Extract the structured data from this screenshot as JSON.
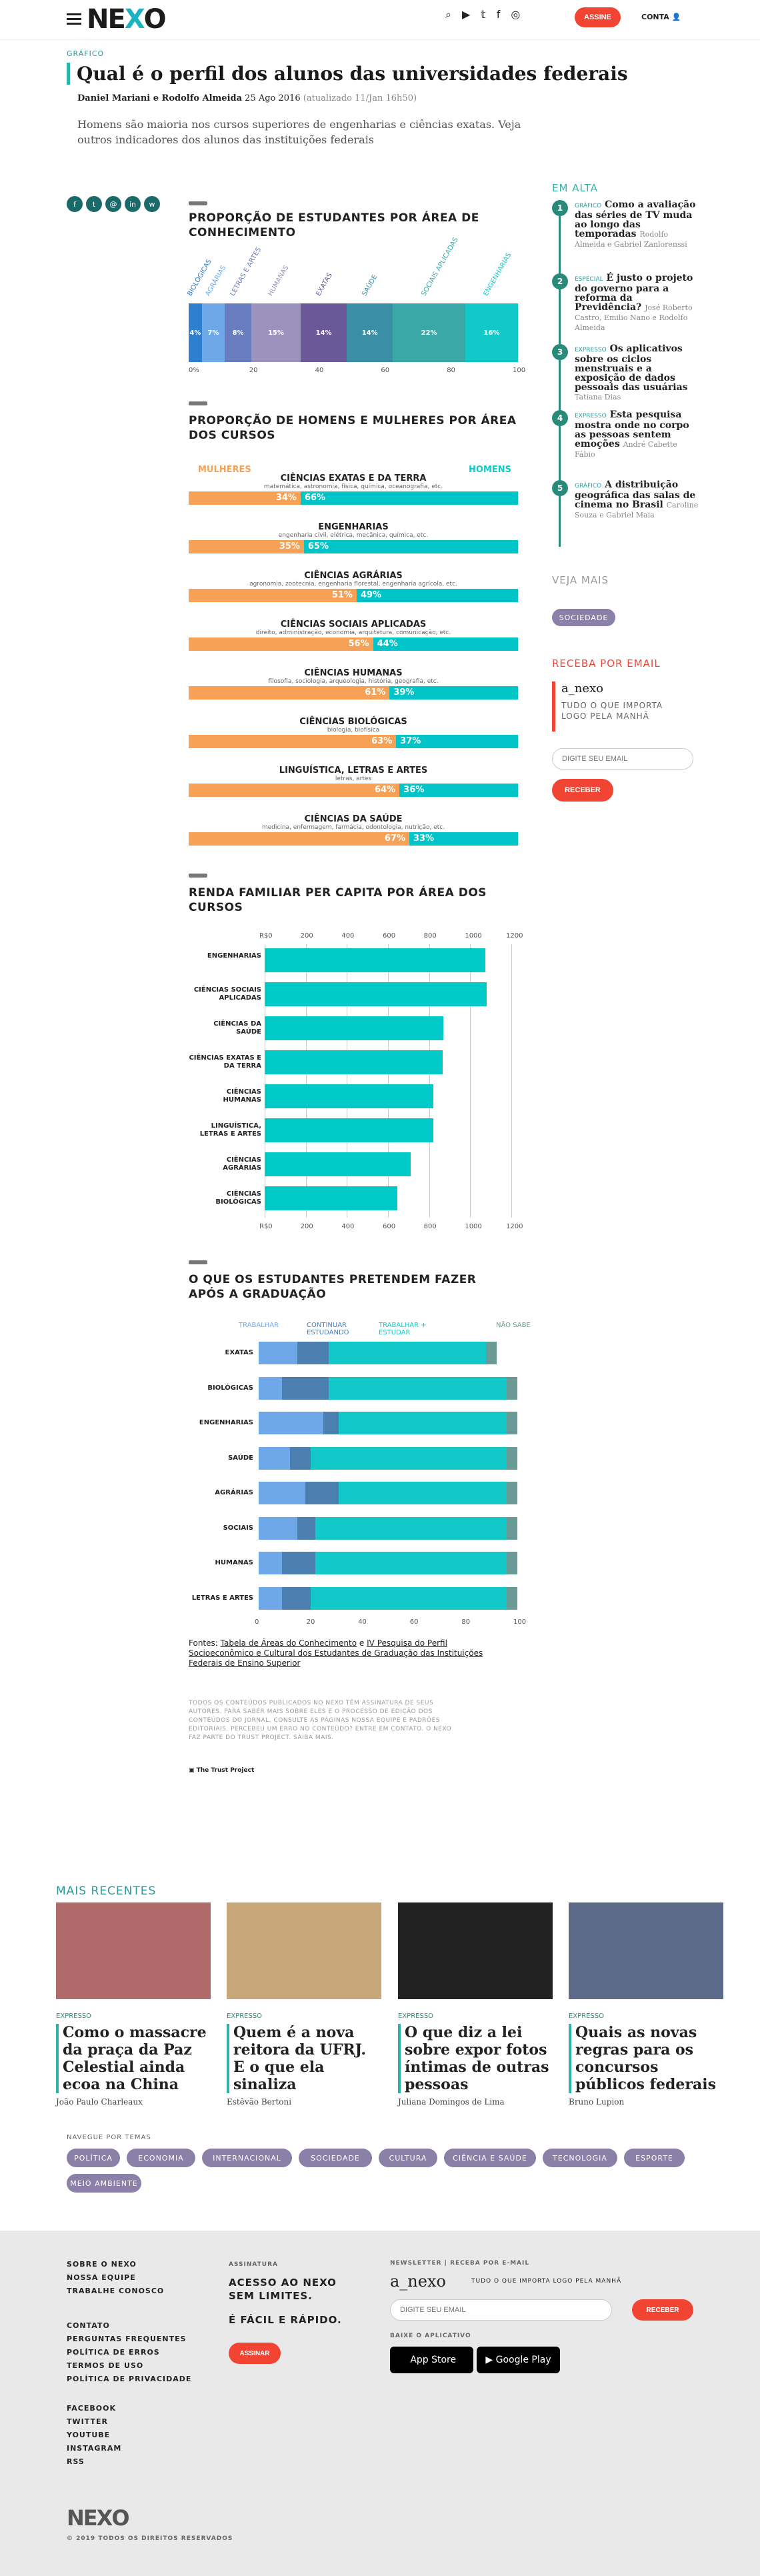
{
  "header": {
    "logo_a": "NE",
    "logo_b": "X",
    "logo_c": "O",
    "assine": "ASSINE",
    "conta": "CONTA"
  },
  "article": {
    "kicker": "GRÁFICO",
    "title": "Qual é o perfil dos alunos das universidades federais",
    "authors": "Daniel Mariani e Rodolfo Almeida",
    "date": "25 Ago 2016",
    "updated": "(atualizado 11/Jan 16h50)",
    "lead": "Homens são maioria nos cursos superiores de engenharias e ciências exatas. Veja outros indicadores dos alunos das instituições federais"
  },
  "chart1": {
    "title": "PROPORÇÃO DE ESTUDANTES POR ÁREA DE CONHECIMENTO",
    "segments": [
      {
        "label": "BIOLÓGICAS",
        "value": "4%",
        "color": "#2f7fcf"
      },
      {
        "label": "AGRÁRIAS",
        "value": "7%",
        "color": "#6fa8e8"
      },
      {
        "label": "LETRAS E ARTES",
        "value": "8%",
        "color": "#6a7cc0"
      },
      {
        "label": "HUMANAS",
        "value": "15%",
        "color": "#9b92bd"
      },
      {
        "label": "EXATAS",
        "value": "14%",
        "color": "#6b5899"
      },
      {
        "label": "SAÚDE",
        "value": "14%",
        "color": "#3a8fa6"
      },
      {
        "label": "SOCIAIS APLICADAS",
        "value": "22%",
        "color": "#3aa8a6"
      },
      {
        "label": "ENGENHARIAS",
        "value": "16%",
        "color": "#12c8c8"
      }
    ],
    "ticks": [
      "0%",
      "20",
      "40",
      "60",
      "80",
      "100"
    ]
  },
  "chart2": {
    "title": "PROPORÇÃO DE HOMENS E MULHERES POR ÁREA DOS CURSOS",
    "women": "MULHERES",
    "men": "HOMENS",
    "rows": [
      {
        "label": "CIÊNCIAS EXATAS E DA TERRA",
        "sub": "matemática, astronomia, física, química, oceanografia, etc.",
        "w": "34%",
        "m": "66%"
      },
      {
        "label": "ENGENHARIAS",
        "sub": "engenharia civil, elétrica, mecânica, química, etc.",
        "w": "35%",
        "m": "65%"
      },
      {
        "label": "CIÊNCIAS AGRÁRIAS",
        "sub": "agronomia, zootecnia, engenharia florestal, engenharia agrícola, etc.",
        "w": "51%",
        "m": "49%"
      },
      {
        "label": "CIÊNCIAS SOCIAIS APLICADAS",
        "sub": "direito, administração, economia, arquitetura, comunicação, etc.",
        "w": "56%",
        "m": "44%"
      },
      {
        "label": "CIÊNCIAS HUMANAS",
        "sub": "filosofia, sociologia, arqueologia, história, geografia, etc.",
        "w": "61%",
        "m": "39%"
      },
      {
        "label": "CIÊNCIAS BIOLÓGICAS",
        "sub": "biologia, biofísica",
        "w": "63%",
        "m": "37%"
      },
      {
        "label": "LINGUÍSTICA, LETRAS E ARTES",
        "sub": "letras, artes",
        "w": "64%",
        "m": "36%"
      },
      {
        "label": "CIÊNCIAS DA SAÚDE",
        "sub": "medicina, enfermagem, farmácia, odontologia, nutrição, etc.",
        "w": "67%",
        "m": "33%"
      }
    ]
  },
  "chart_data": [
    {
      "type": "bar",
      "title": "RENDA FAMILIAR PER CAPITA POR ÁREA DOS CURSOS",
      "xlim": [
        0,
        1200
      ],
      "ticks": [
        "R$0",
        "200",
        "400",
        "600",
        "800",
        "1000",
        "1200"
      ],
      "categories": [
        "ENGENHARIAS",
        "CIÊNCIAS SOCIAIS APLICADAS",
        "CIÊNCIAS DA SAÚDE",
        "CIÊNCIAS EXATAS E DA TERRA",
        "CIÊNCIAS HUMANAS",
        "LINGUÍSTICA, LETRAS E ARTES",
        "CIÊNCIAS AGRÁRIAS",
        "CIÊNCIAS BIOLÓGICAS"
      ],
      "values": [
        1075,
        1080,
        870,
        865,
        820,
        820,
        710,
        645
      ]
    },
    {
      "type": "bar",
      "title": "O QUE OS ESTUDANTES PRETENDEM FAZER APÓS A GRADUAÇÃO",
      "ticks": [
        "0",
        "20",
        "40",
        "60",
        "80",
        "100"
      ],
      "legend": [
        "TRABALHAR",
        "CONTINUAR ESTUDANDO",
        "TRABALHAR + ESTUDAR",
        "NÃO SABE"
      ],
      "colors": [
        "#6fa8e8",
        "#4a7fb0",
        "#12c8c8",
        "#6a9a96"
      ],
      "categories": [
        "EXATAS",
        "BIOLÓGICAS",
        "ENGENHARIAS",
        "SAÚDE",
        "AGRÁRIAS",
        "SOCIAIS",
        "HUMANAS",
        "LETRAS E ARTES"
      ],
      "series": [
        [
          15,
          12,
          61,
          4
        ],
        [
          9,
          18,
          69,
          4
        ],
        [
          25,
          6,
          65,
          4
        ],
        [
          12,
          8,
          76,
          4
        ],
        [
          18,
          13,
          65,
          4
        ],
        [
          15,
          7,
          74,
          4
        ],
        [
          9,
          13,
          74,
          4
        ],
        [
          9,
          11,
          76,
          4
        ]
      ]
    }
  ],
  "sources": {
    "prefix": "Fontes:",
    "s1": "Tabela de Áreas do Conhecimento",
    "mid": "e",
    "s2": "IV Pesquisa do Perfil Socioeconômico e Cultural dos Estudantes de Graduação das Instituições Federais de Ensino Superior"
  },
  "legal": "TODOS OS CONTEÚDOS PUBLICADOS NO NEXO TÊM ASSINATURA DE SEUS AUTORES. PARA SABER MAIS SOBRE ELES E O PROCESSO DE EDIÇÃO DOS CONTEÚDOS DO JORNAL, CONSULTE AS PÁGINAS NOSSA EQUIPE E PADRÕES EDITORIAIS. PERCEBEU UM ERRO NO CONTEÚDO? ENTRE EM CONTATO. O NEXO FAZ PARTE DO TRUST PROJECT. SAIBA MAIS.",
  "trust": "The Trust Project",
  "sidebar": {
    "em_alta": "EM ALTA",
    "items": [
      {
        "k": "GRÁFICO",
        "t": "Como a avaliação das séries de TV muda ao longo das temporadas",
        "a": "Rodolfo Almeida e Gabriel Zanlorenssi"
      },
      {
        "k": "ESPECIAL",
        "t": "É justo o projeto do governo para a reforma da Previdência?",
        "a": "José Roberto Castro, Emilio Nano e Rodolfo Almeida"
      },
      {
        "k": "EXPRESSO",
        "t": "Os aplicativos sobre os ciclos menstruais e a exposição de dados pessoais das usuárias",
        "a": "Tatiana Dias"
      },
      {
        "k": "EXPRESSO",
        "t": "Esta pesquisa mostra onde no corpo as pessoas sentem emoções",
        "a": "André Cabette Fábio"
      },
      {
        "k": "GRÁFICO",
        "t": "A distribuição geográfica das salas de cinema no Brasil",
        "a": "Caroline Souza e Gabriel Maia"
      }
    ],
    "veja": "VEJA MAIS",
    "tag": "SOCIEDADE",
    "receba": "RECEBA POR EMAIL",
    "nl": "a_nexo",
    "nl_desc": "TUDO O QUE IMPORTA LOGO PELA MANHÃ",
    "email_ph": "DIGITE SEU EMAIL",
    "receber": "RECEBER"
  },
  "recent": {
    "title": "MAIS RECENTES",
    "cards": [
      {
        "k": "EXPRESSO",
        "h": "Como o massacre da praça da Paz Celestial ainda ecoa na China",
        "by": "João Paulo Charleaux"
      },
      {
        "k": "EXPRESSO",
        "h": "Quem é a nova reitora da UFRJ. E o que ela sinaliza",
        "by": "Estêvão Bertoni"
      },
      {
        "k": "EXPRESSO",
        "h": "O que diz a lei sobre expor fotos íntimas de outras pessoas",
        "by": "Juliana Domingos de Lima"
      },
      {
        "k": "EXPRESSO",
        "h": "Quais as novas regras para os concursos públicos federais",
        "by": "Bruno Lupion"
      }
    ]
  },
  "nav": {
    "title": "NAVEGUE POR TEMAS",
    "topics": [
      "POLÍTICA",
      "ECONOMIA",
      "INTERNACIONAL",
      "SOCIEDADE",
      "CULTURA",
      "CIÊNCIA E SAÚDE",
      "TECNOLOGIA",
      "ESPORTE",
      "MEIO AMBIENTE"
    ]
  },
  "footer": {
    "links1": [
      "SOBRE O NEXO",
      "NOSSA EQUIPE",
      "TRABALHE CONOSCO"
    ],
    "links2": [
      "CONTATO",
      "PERGUNTAS FREQUENTES",
      "POLÍTICA DE ERROS",
      "TERMOS DE USO",
      "POLÍTICA DE PRIVACIDADE"
    ],
    "social": [
      "FACEBOOK",
      "TWITTER",
      "YOUTUBE",
      "INSTAGRAM",
      "RSS"
    ],
    "assinatura": "ASSINATURA",
    "acesso": "ACESSO AO NEXO SEM LIMITES.",
    "facil": "É FÁCIL E RÁPIDO.",
    "assinar": "ASSINAR",
    "newsletter": "NEWSLETTER | RECEBA POR E-MAIL",
    "nl": "a_nexo",
    "nl_desc": "TUDO O QUE IMPORTA LOGO PELA MANHÃ",
    "email_ph": "DIGITE SEU EMAIL",
    "receber": "RECEBER",
    "app": "BAIXE O APLICATIVO",
    "appstore": "App Store",
    "gplay": "Google Play",
    "copyright": "© 2019 TODOS OS DIREITOS RESERVADOS"
  }
}
